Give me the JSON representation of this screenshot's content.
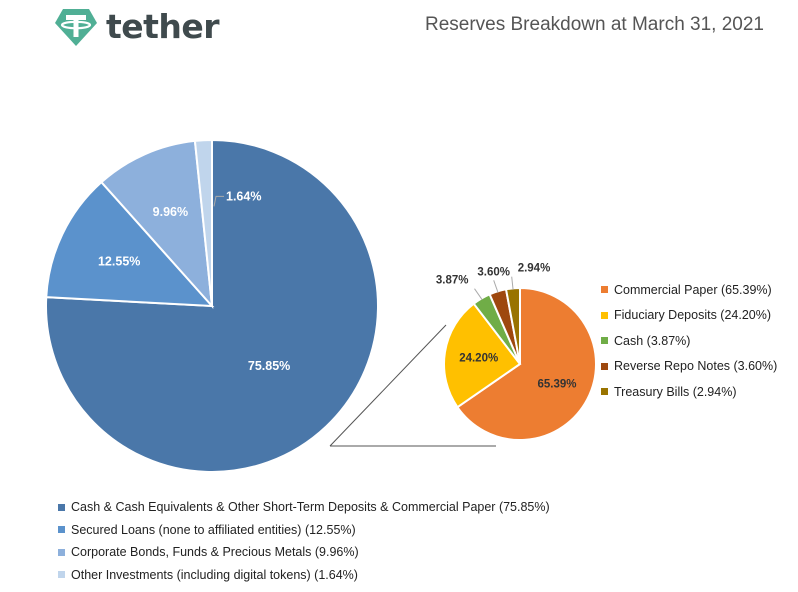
{
  "brand": {
    "name": "tether",
    "logo_icon": "tether-logo-icon",
    "logo_color": "#50af95"
  },
  "chart_data": [
    {
      "type": "pie",
      "title": "Reserves Breakdown at March 31, 2021",
      "categories": [
        "Cash & Cash Equivalents & Other Short-Term Deposits & Commercial Paper",
        "Secured Loans (none to affiliated entities)",
        "Corporate Bonds, Funds & Precious Metals",
        "Other Investments (including digital tokens)"
      ],
      "values": [
        75.85,
        12.55,
        9.96,
        1.64
      ],
      "data_labels": [
        "75.85%",
        "12.55%",
        "9.96%",
        "1.64%"
      ],
      "legend_labels": [
        "Cash & Cash Equivalents & Other Short-Term Deposits & Commercial Paper (75.85%)",
        "Secured Loans (none to affiliated entities) (12.55%)",
        "Corporate Bonds, Funds & Precious Metals (9.96%)",
        "Other Investments (including digital tokens) (1.64%)"
      ],
      "colors": [
        "#4a77a9",
        "#5b92cc",
        "#8db0dc",
        "#c0d5ec"
      ],
      "legend_position": "bottom",
      "exploded_slice": "Cash & Cash Equivalents & Other Short-Term Deposits & Commercial Paper"
    },
    {
      "type": "pie",
      "categories": [
        "Commercial Paper",
        "Fiduciary Deposits",
        "Cash",
        "Reverse Repo Notes",
        "Treasury Bills"
      ],
      "values": [
        65.39,
        24.2,
        3.87,
        3.6,
        2.94
      ],
      "data_labels": [
        "65.39%",
        "24.20%",
        "3.87%",
        "3.60%",
        "2.94%"
      ],
      "legend_labels": [
        "Commercial Paper (65.39%)",
        "Fiduciary Deposits (24.20%)",
        "Cash (3.87%)",
        "Reverse Repo Notes (3.60%)",
        "Treasury Bills (2.94%)"
      ],
      "colors": [
        "#ed7d31",
        "#ffc000",
        "#70ad47",
        "#9e480e",
        "#997300"
      ],
      "legend_position": "right"
    }
  ]
}
